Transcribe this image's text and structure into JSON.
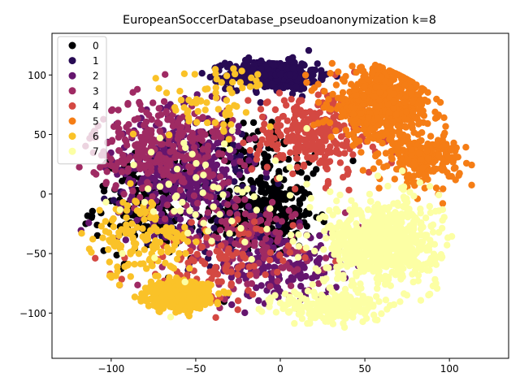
{
  "chart_data": {
    "type": "scatter",
    "title": "EuropeanSoccerDatabase_pseudoanonymization k=8",
    "xlabel": "",
    "ylabel": "",
    "xlim": [
      -135,
      135
    ],
    "ylim": [
      -138,
      135
    ],
    "x_ticks": [
      -100,
      -50,
      0,
      50,
      100
    ],
    "y_ticks": [
      -100,
      -50,
      0,
      50,
      100
    ],
    "x_tick_labels": [
      "−100",
      "−50",
      "0",
      "50",
      "100"
    ],
    "y_tick_labels": [
      "−100",
      "−50",
      "0",
      "50",
      "100"
    ],
    "grid": false,
    "legend_position": "top-left",
    "series": [
      {
        "name": "0",
        "color": "#000004",
        "clusters": [
          {
            "center": [
              -10,
              -20
            ],
            "spread": [
              25,
              28
            ],
            "count": 300
          },
          {
            "center": [
              -80,
              -10
            ],
            "spread": [
              25,
              35
            ],
            "count": 180
          },
          {
            "center": [
              -20,
              30
            ],
            "spread": [
              35,
              25
            ],
            "count": 120
          }
        ]
      },
      {
        "name": "1",
        "color": "#280b54",
        "clusters": [
          {
            "center": [
              -5,
              100
            ],
            "spread": [
              22,
              10
            ],
            "count": 450
          },
          {
            "center": [
              -40,
              0
            ],
            "spread": [
              40,
              50
            ],
            "count": 120
          }
        ]
      },
      {
        "name": "2",
        "color": "#65156e",
        "clusters": [
          {
            "center": [
              -60,
              20
            ],
            "spread": [
              30,
              40
            ],
            "count": 400
          },
          {
            "center": [
              0,
              -60
            ],
            "spread": [
              30,
              25
            ],
            "count": 150
          }
        ]
      },
      {
        "name": "3",
        "color": "#9f2a63",
        "clusters": [
          {
            "center": [
              -70,
              40
            ],
            "spread": [
              35,
              35
            ],
            "count": 300
          },
          {
            "center": [
              -20,
              -40
            ],
            "spread": [
              40,
              35
            ],
            "count": 150
          }
        ]
      },
      {
        "name": "4",
        "color": "#d44842",
        "clusters": [
          {
            "center": [
              20,
              50
            ],
            "spread": [
              30,
              30
            ],
            "count": 280
          },
          {
            "center": [
              -40,
              -60
            ],
            "spread": [
              40,
              30
            ],
            "count": 120
          }
        ]
      },
      {
        "name": "5",
        "color": "#f57d15",
        "clusters": [
          {
            "center": [
              60,
              75
            ],
            "spread": [
              25,
              25
            ],
            "count": 600
          },
          {
            "center": [
              85,
              30
            ],
            "spread": [
              18,
              18
            ],
            "count": 220
          }
        ]
      },
      {
        "name": "6",
        "color": "#fac228",
        "clusters": [
          {
            "center": [
              -60,
              -85
            ],
            "spread": [
              15,
              9
            ],
            "count": 600
          },
          {
            "center": [
              -80,
              -40
            ],
            "spread": [
              25,
              30
            ],
            "count": 150
          },
          {
            "center": [
              -40,
              80
            ],
            "spread": [
              30,
              25
            ],
            "count": 70
          }
        ]
      },
      {
        "name": "7",
        "color": "#fcffa4",
        "clusters": [
          {
            "center": [
              60,
              -40
            ],
            "spread": [
              28,
              30
            ],
            "count": 700
          },
          {
            "center": [
              30,
              -95
            ],
            "spread": [
              25,
              12
            ],
            "count": 220
          },
          {
            "center": [
              -50,
              0
            ],
            "spread": [
              40,
              50
            ],
            "count": 60
          }
        ]
      }
    ]
  }
}
